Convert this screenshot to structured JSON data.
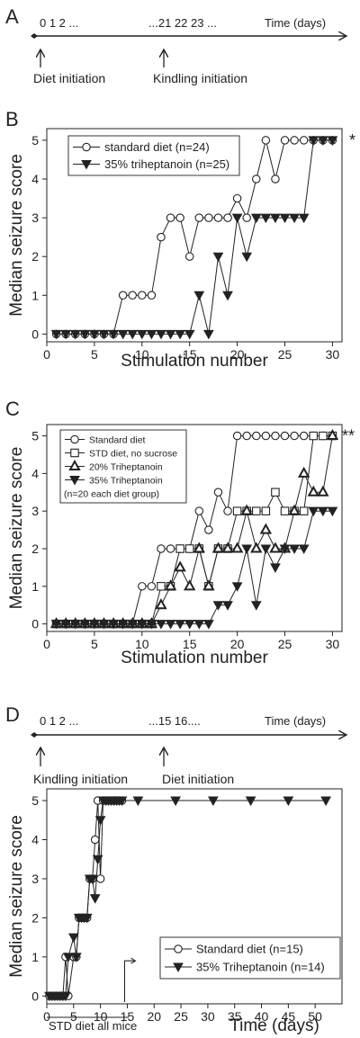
{
  "panels": {
    "A": {
      "letter": "A",
      "ticks_left": "0  1  2 ...",
      "ticks_right": "...21 22 23 ...",
      "axis_label": "Time (days)",
      "event1": "Diet initiation",
      "event2": "Kindling initiation"
    },
    "D": {
      "letter": "D",
      "ticks_left": "0  1  2 ...",
      "ticks_right": "...15 16....",
      "axis_label": "Time (days)",
      "event1": "Kindling initiation",
      "event2": "Diet initiation",
      "footnote": "STD diet all mice"
    }
  },
  "chart_data": [
    {
      "panel": "B",
      "type": "line",
      "xlabel": "Stimulation number",
      "ylabel": "Median seizure score",
      "xlim": [
        0,
        31
      ],
      "ylim": [
        -0.2,
        5.3
      ],
      "xticks": [
        0,
        5,
        10,
        15,
        20,
        25,
        30
      ],
      "yticks": [
        0,
        1,
        2,
        3,
        4,
        5
      ],
      "significance": "*",
      "legend_position": "top-left",
      "series": [
        {
          "name": "standard diet (n=24)",
          "marker": "circle",
          "x": [
            1,
            2,
            3,
            4,
            5,
            6,
            7,
            8,
            9,
            10,
            11,
            12,
            13,
            14,
            15,
            16,
            17,
            18,
            19,
            20,
            21,
            22,
            23,
            24,
            25,
            26,
            27,
            28,
            29,
            30
          ],
          "y": [
            0,
            0,
            0,
            0,
            0,
            0,
            0,
            1,
            1,
            1,
            1,
            2.5,
            3,
            3,
            2,
            3,
            3,
            3,
            3,
            3.5,
            3,
            4,
            5,
            4,
            5,
            5,
            5,
            5,
            5,
            5
          ]
        },
        {
          "name": "35% triheptanoin (n=25)",
          "marker": "triangle-down",
          "x": [
            1,
            2,
            3,
            4,
            5,
            6,
            7,
            8,
            9,
            10,
            11,
            12,
            13,
            14,
            15,
            16,
            17,
            18,
            19,
            20,
            21,
            22,
            23,
            24,
            25,
            26,
            27,
            28,
            29,
            30
          ],
          "y": [
            0,
            0,
            0,
            0,
            0,
            0,
            0,
            0,
            0,
            0,
            0,
            0,
            0,
            0,
            0,
            1,
            0,
            2,
            1,
            3,
            2,
            3,
            3,
            3,
            3,
            3,
            3,
            5,
            5,
            5
          ]
        }
      ]
    },
    {
      "panel": "C",
      "type": "line",
      "xlabel": "Stimulation number",
      "ylabel": "Median seizure score",
      "xlim": [
        0,
        31
      ],
      "ylim": [
        -0.2,
        5.3
      ],
      "xticks": [
        0,
        5,
        10,
        15,
        20,
        25,
        30
      ],
      "yticks": [
        0,
        1,
        2,
        3,
        4,
        5
      ],
      "significance": "**",
      "legend_position": "top-left",
      "legend_note": "(n=20 each diet group)",
      "series": [
        {
          "name": "Standard diet",
          "marker": "circle",
          "x": [
            1,
            2,
            3,
            4,
            5,
            6,
            7,
            8,
            9,
            10,
            11,
            12,
            13,
            14,
            15,
            16,
            17,
            18,
            19,
            20,
            21,
            22,
            23,
            24,
            25,
            26,
            27,
            28,
            29,
            30
          ],
          "y": [
            0,
            0,
            0,
            0,
            0,
            0,
            0,
            0,
            0,
            1,
            1,
            2,
            2,
            2,
            2,
            3,
            2.5,
            3.5,
            3,
            5,
            5,
            5,
            5,
            5,
            5,
            5,
            5,
            5,
            5,
            5
          ]
        },
        {
          "name": "STD diet, no sucrose",
          "marker": "square",
          "x": [
            1,
            2,
            3,
            4,
            5,
            6,
            7,
            8,
            9,
            10,
            11,
            12,
            13,
            14,
            15,
            16,
            17,
            18,
            19,
            20,
            21,
            22,
            23,
            24,
            25,
            26,
            27,
            28,
            29,
            30
          ],
          "y": [
            0,
            0,
            0,
            0,
            0,
            0,
            0,
            0,
            0,
            0,
            0,
            1,
            1,
            2,
            2,
            2,
            1,
            2,
            2,
            3,
            3,
            3,
            3,
            3.5,
            3,
            3,
            3,
            5,
            5,
            5
          ]
        },
        {
          "name": "20% Triheptanoin",
          "marker": "triangle-up",
          "x": [
            1,
            2,
            3,
            4,
            5,
            6,
            7,
            8,
            9,
            10,
            11,
            12,
            13,
            14,
            15,
            16,
            17,
            18,
            19,
            20,
            21,
            22,
            23,
            24,
            25,
            26,
            27,
            28,
            29,
            30
          ],
          "y": [
            0,
            0,
            0,
            0,
            0,
            0,
            0,
            0,
            0,
            0,
            0,
            0.5,
            1,
            1.5,
            1,
            2,
            1,
            2,
            2,
            2,
            3,
            2,
            2.5,
            2,
            2,
            3,
            4,
            3.5,
            3.5,
            5
          ]
        },
        {
          "name": "35% Triheptanoin",
          "marker": "triangle-down",
          "x": [
            1,
            2,
            3,
            4,
            5,
            6,
            7,
            8,
            9,
            10,
            11,
            12,
            13,
            14,
            15,
            16,
            17,
            18,
            19,
            20,
            21,
            22,
            23,
            24,
            25,
            26,
            27,
            28,
            29,
            30
          ],
          "y": [
            0,
            0,
            0,
            0,
            0,
            0,
            0,
            0,
            0,
            0,
            0,
            0,
            0,
            0,
            0,
            0,
            0,
            0.5,
            0.5,
            1,
            2,
            0.5,
            2,
            1.5,
            2,
            2,
            2,
            3,
            3,
            3
          ]
        }
      ]
    },
    {
      "panel": "D",
      "type": "line",
      "xlabel": "Time (days)",
      "ylabel": "Median seizure score",
      "xlim": [
        0,
        55
      ],
      "ylim": [
        -0.2,
        5.3
      ],
      "xticks": [
        0,
        5,
        10,
        15,
        20,
        25,
        30,
        35,
        40,
        45,
        50
      ],
      "yticks": [
        0,
        1,
        2,
        3,
        4,
        5
      ],
      "diet_start_day": 15,
      "legend_position": "bottom-right",
      "series": [
        {
          "name": "Standard diet (n=15)",
          "marker": "circle",
          "x": [
            0.5,
            1,
            1.5,
            2,
            2.5,
            3,
            3.5,
            4,
            5,
            5.5,
            6,
            6.5,
            7,
            7.5,
            8,
            8.5,
            9,
            9.5,
            10,
            10.5,
            11,
            11.5,
            12,
            12.5,
            13,
            13.5,
            14
          ],
          "y": [
            0,
            0,
            0,
            0,
            0,
            0,
            1,
            0,
            1,
            1,
            2,
            2,
            2,
            2,
            3,
            3,
            4,
            5,
            3,
            5,
            5,
            5,
            5,
            5,
            5,
            5,
            5
          ]
        },
        {
          "name": "35% Triheptanoin (n=14)",
          "marker": "triangle-down",
          "x": [
            0.5,
            1,
            1.5,
            2,
            2.5,
            3,
            3.5,
            4,
            5,
            5.5,
            6,
            6.5,
            7,
            7.5,
            8,
            8.5,
            9,
            9.5,
            10,
            10.5,
            11,
            11.5,
            12,
            12.5,
            13,
            13.5,
            14,
            17,
            24,
            31,
            38,
            45,
            52
          ],
          "y": [
            0,
            0,
            0,
            0,
            0,
            0,
            0,
            1,
            1.5,
            1,
            2,
            2,
            2,
            2,
            3,
            3,
            2.5,
            3.5,
            4.5,
            5,
            5,
            5,
            5,
            5,
            5,
            5,
            5,
            5,
            5,
            5,
            5,
            5,
            5
          ]
        }
      ]
    }
  ]
}
